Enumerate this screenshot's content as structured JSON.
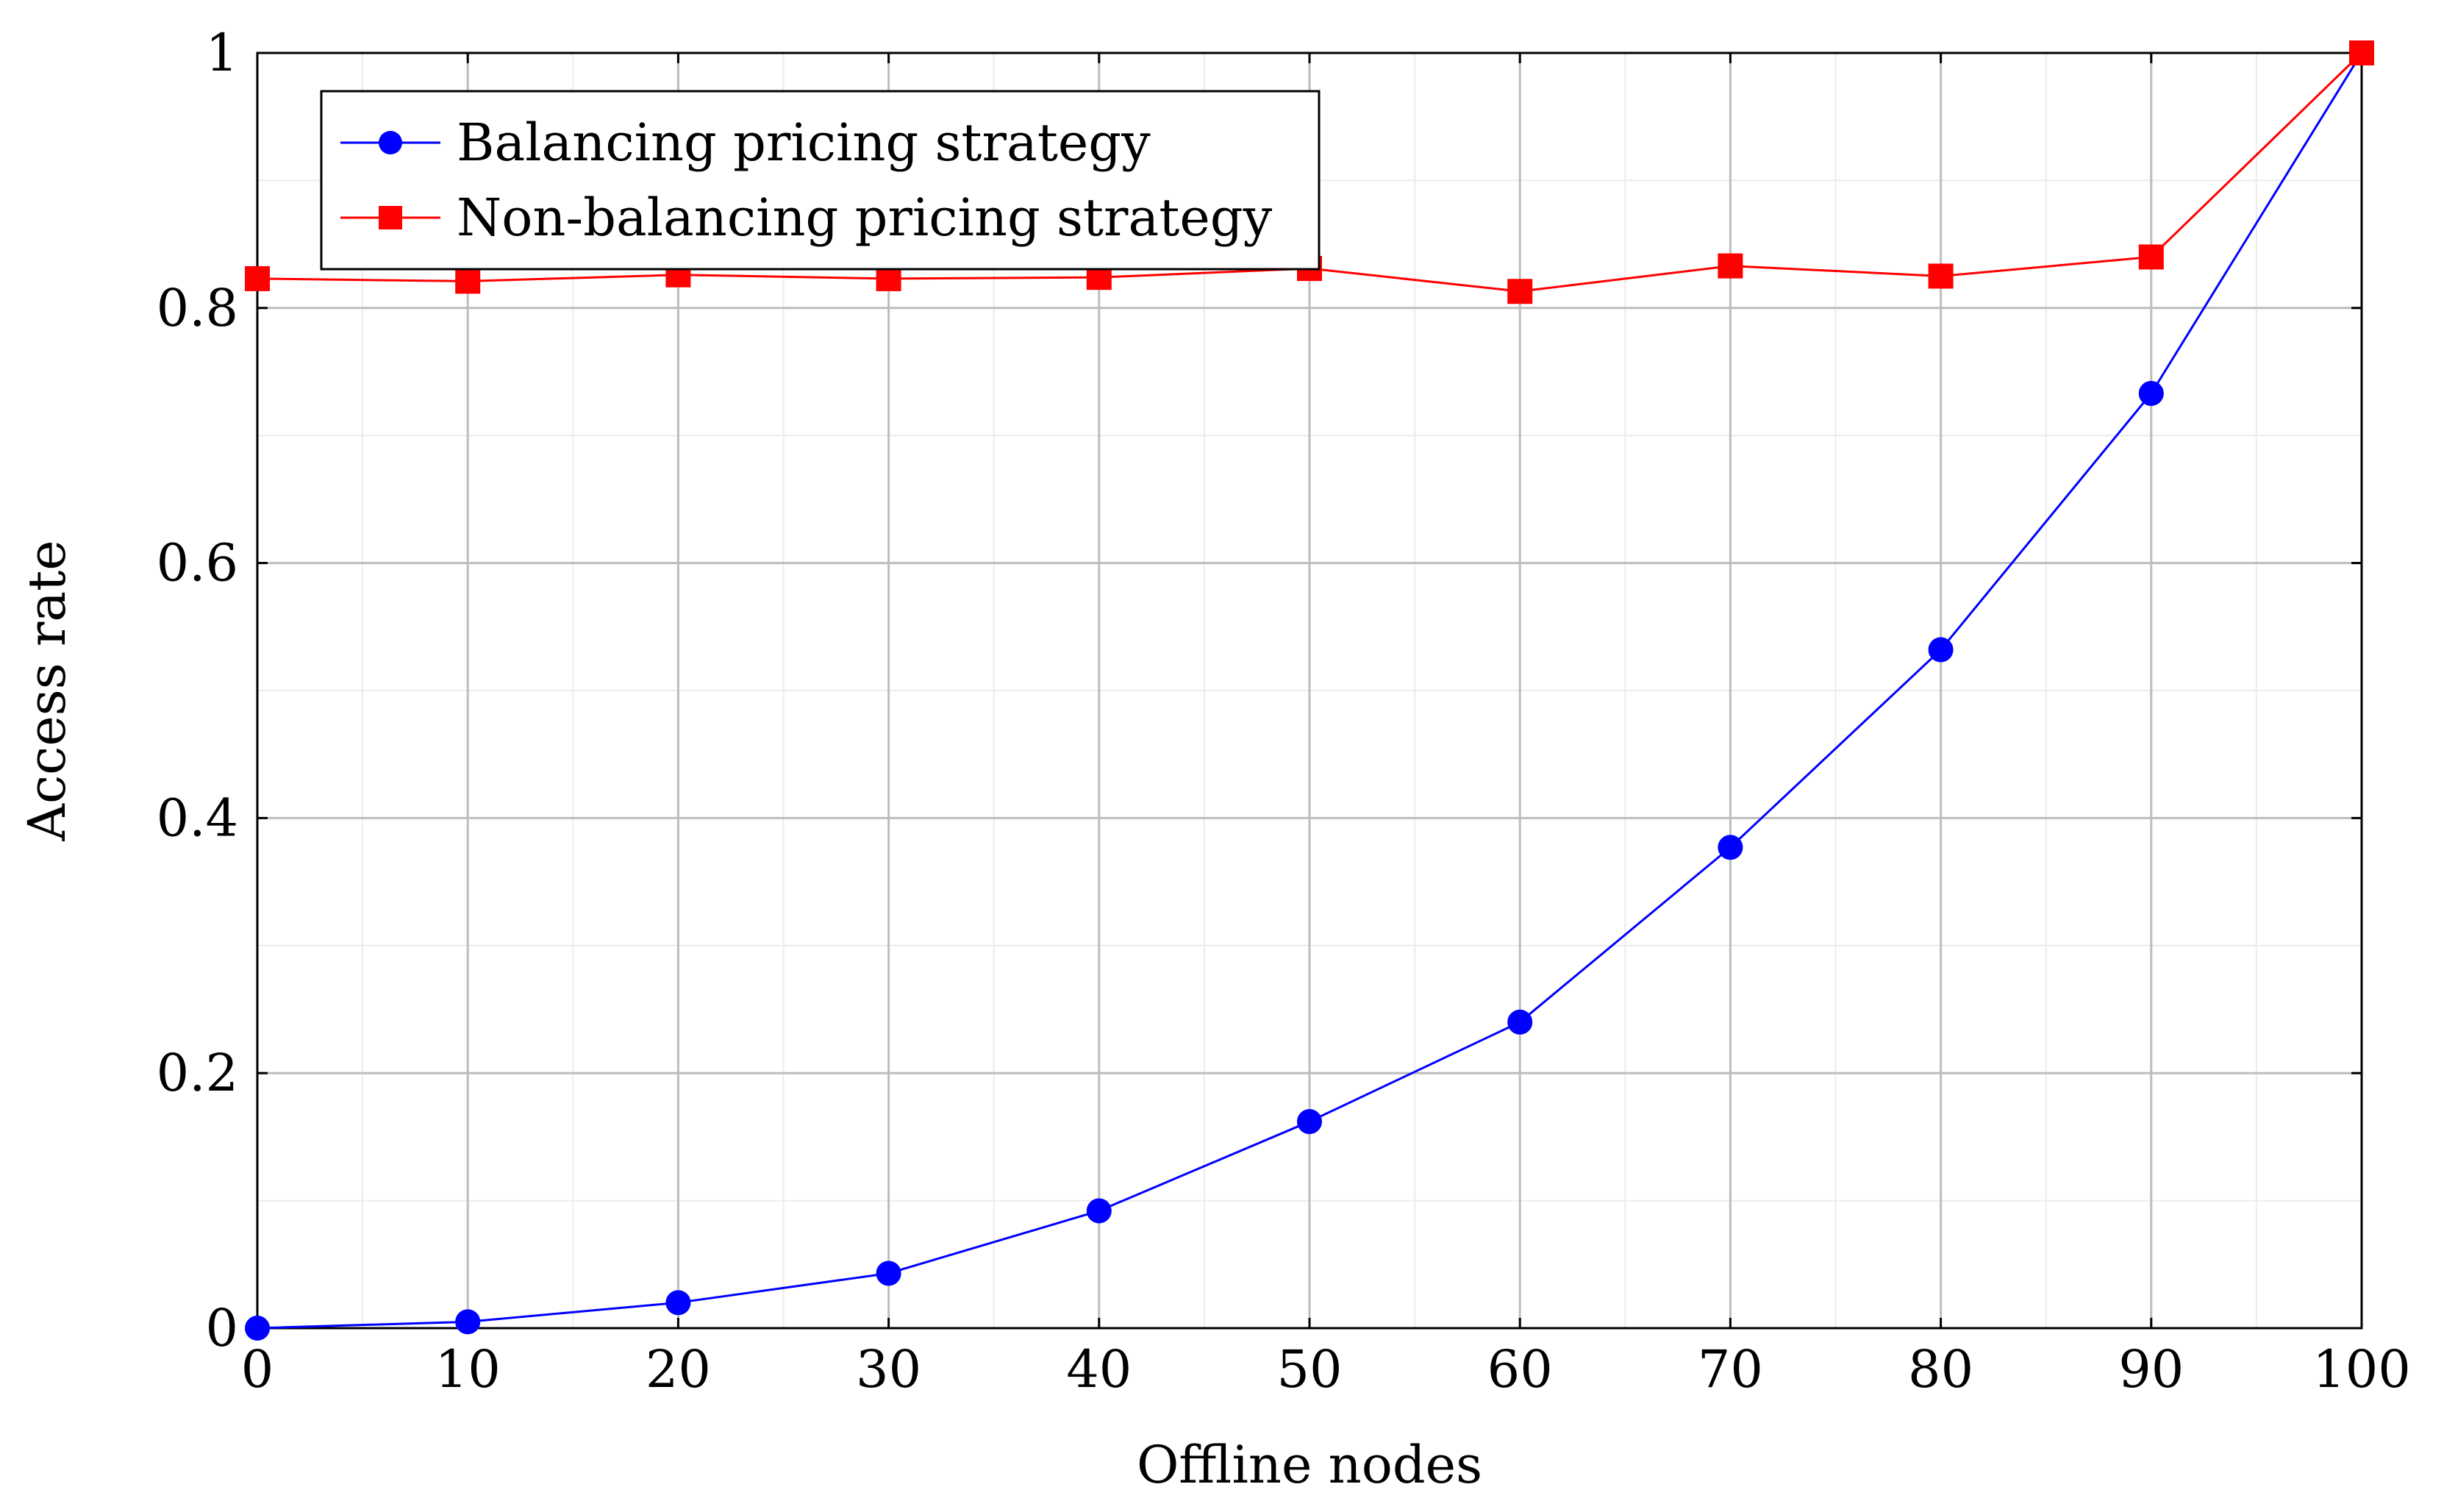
{
  "chart_data": {
    "type": "line",
    "title": "",
    "xlabel": "Offline nodes",
    "ylabel": "Access rate",
    "xlim": [
      0,
      100
    ],
    "ylim": [
      0,
      1
    ],
    "grid": true,
    "legend_position": "top-left",
    "x": [
      0,
      10,
      20,
      30,
      40,
      50,
      60,
      70,
      80,
      90,
      100
    ],
    "x_ticks": [
      "0",
      "10",
      "20",
      "30",
      "40",
      "50",
      "60",
      "70",
      "80",
      "90",
      "100"
    ],
    "y_ticks": [
      {
        "value": 0,
        "label": "0"
      },
      {
        "value": 0.2,
        "label": "0.2"
      },
      {
        "value": 0.4,
        "label": "0.4"
      },
      {
        "value": 0.6,
        "label": "0.6"
      },
      {
        "value": 0.8,
        "label": "0.8"
      },
      {
        "value": 1,
        "label": "1"
      }
    ],
    "series": [
      {
        "name": "Balancing pricing strategy",
        "color": "#0000ff",
        "marker": "circle",
        "values": [
          0.0,
          0.005,
          0.02,
          0.043,
          0.092,
          0.162,
          0.24,
          0.377,
          0.532,
          0.733,
          1.0
        ]
      },
      {
        "name": "Non-balancing pricing strategy",
        "color": "#ff0000",
        "marker": "square",
        "values": [
          0.823,
          0.821,
          0.826,
          0.823,
          0.824,
          0.831,
          0.813,
          0.833,
          0.825,
          0.84,
          1.0
        ]
      }
    ]
  }
}
